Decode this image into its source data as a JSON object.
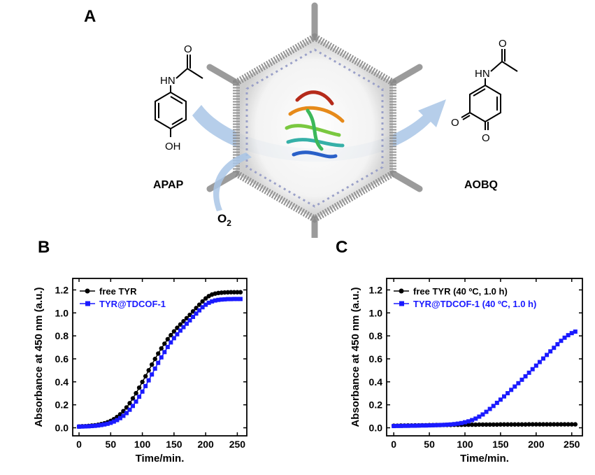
{
  "panels": {
    "a": {
      "letter": "A"
    },
    "b": {
      "letter": "B"
    },
    "c": {
      "letter": "C"
    }
  },
  "scheme": {
    "reactant_label": "APAP",
    "product_label": "AOBQ",
    "oxygen_label": "O",
    "oxygen_subscript": "2",
    "reactant_atoms": {
      "nh": "HN",
      "o_carbonyl": "O",
      "oh": "OH"
    },
    "product_atoms": {
      "nh": "HN",
      "o_carbonyl": "O",
      "o1": "O",
      "o2": "O"
    }
  },
  "colors": {
    "free": "#000000",
    "immobilized": "#1a1aff",
    "arrow": "#a9c6e6"
  },
  "chart_data": [
    {
      "type": "scatter",
      "panel": "B",
      "title": "",
      "xlabel": "Time/min.",
      "ylabel": "Absorbance at 450 nm (a.u.)",
      "xlim": [
        -10,
        265
      ],
      "ylim": [
        -0.07,
        1.3
      ],
      "xticks": [
        "0",
        "50",
        "100",
        "150",
        "200",
        "250"
      ],
      "yticks": [
        "0.0",
        "0.2",
        "0.4",
        "0.6",
        "0.8",
        "1.0",
        "1.2"
      ],
      "grid": false,
      "legend_position": "top-left",
      "series": [
        {
          "name": "free TYR",
          "marker": "circle",
          "x": [
            0,
            5,
            10,
            15,
            20,
            25,
            30,
            35,
            40,
            45,
            50,
            55,
            60,
            65,
            70,
            75,
            80,
            85,
            90,
            95,
            100,
            105,
            110,
            115,
            120,
            125,
            130,
            135,
            140,
            145,
            150,
            155,
            160,
            165,
            170,
            175,
            180,
            185,
            190,
            195,
            200,
            205,
            210,
            215,
            220,
            225,
            230,
            235,
            240,
            245,
            250,
            255
          ],
          "y": [
            0.011,
            0.013,
            0.014,
            0.016,
            0.019,
            0.022,
            0.026,
            0.032,
            0.039,
            0.048,
            0.06,
            0.075,
            0.094,
            0.117,
            0.145,
            0.177,
            0.214,
            0.256,
            0.301,
            0.349,
            0.399,
            0.449,
            0.5,
            0.55,
            0.599,
            0.646,
            0.691,
            0.732,
            0.771,
            0.806,
            0.839,
            0.87,
            0.899,
            0.927,
            0.954,
            0.983,
            1.013,
            1.042,
            1.071,
            1.1,
            1.126,
            1.146,
            1.16,
            1.168,
            1.173,
            1.176,
            1.178,
            1.179,
            1.18,
            1.18,
            1.18,
            1.18
          ]
        },
        {
          "name": "TYR@TDCOF-1",
          "marker": "square",
          "x": [
            0,
            5,
            10,
            15,
            20,
            25,
            30,
            35,
            40,
            45,
            50,
            55,
            60,
            65,
            70,
            75,
            80,
            85,
            90,
            95,
            100,
            105,
            110,
            115,
            120,
            125,
            130,
            135,
            140,
            145,
            150,
            155,
            160,
            165,
            170,
            175,
            180,
            185,
            190,
            195,
            200,
            205,
            210,
            215,
            220,
            225,
            230,
            235,
            240,
            245,
            250,
            255
          ],
          "y": [
            0.01,
            0.011,
            0.012,
            0.013,
            0.015,
            0.017,
            0.02,
            0.024,
            0.029,
            0.035,
            0.043,
            0.054,
            0.067,
            0.084,
            0.104,
            0.128,
            0.157,
            0.19,
            0.228,
            0.27,
            0.315,
            0.363,
            0.413,
            0.464,
            0.515,
            0.565,
            0.613,
            0.659,
            0.703,
            0.743,
            0.78,
            0.814,
            0.846,
            0.876,
            0.906,
            0.935,
            0.965,
            0.994,
            1.022,
            1.049,
            1.071,
            1.088,
            1.1,
            1.108,
            1.113,
            1.116,
            1.118,
            1.12,
            1.12,
            1.121,
            1.121,
            1.121
          ]
        }
      ]
    },
    {
      "type": "scatter",
      "panel": "C",
      "title": "",
      "xlabel": "Time/min.",
      "ylabel": "Absorbance at 450 nm (a.u.)",
      "xlim": [
        -10,
        265
      ],
      "ylim": [
        -0.07,
        1.3
      ],
      "xticks": [
        "0",
        "50",
        "100",
        "150",
        "200",
        "250"
      ],
      "yticks": [
        "0.0",
        "0.2",
        "0.4",
        "0.6",
        "0.8",
        "1.0",
        "1.2"
      ],
      "grid": false,
      "legend_position": "top-left",
      "series": [
        {
          "name": "free TYR (40 ºC, 1.0 h)",
          "marker": "circle",
          "x": [
            0,
            5,
            10,
            15,
            20,
            25,
            30,
            35,
            40,
            45,
            50,
            55,
            60,
            65,
            70,
            75,
            80,
            85,
            90,
            95,
            100,
            105,
            110,
            115,
            120,
            125,
            130,
            135,
            140,
            145,
            150,
            155,
            160,
            165,
            170,
            175,
            180,
            185,
            190,
            195,
            200,
            205,
            210,
            215,
            220,
            225,
            230,
            235,
            240,
            245,
            250,
            255
          ],
          "y": [
            0.018,
            0.018,
            0.019,
            0.019,
            0.02,
            0.02,
            0.021,
            0.021,
            0.022,
            0.022,
            0.023,
            0.023,
            0.024,
            0.024,
            0.025,
            0.025,
            0.025,
            0.026,
            0.026,
            0.026,
            0.027,
            0.027,
            0.027,
            0.027,
            0.028,
            0.028,
            0.028,
            0.028,
            0.028,
            0.028,
            0.029,
            0.029,
            0.029,
            0.029,
            0.029,
            0.029,
            0.029,
            0.029,
            0.03,
            0.03,
            0.03,
            0.03,
            0.03,
            0.03,
            0.03,
            0.03,
            0.03,
            0.03,
            0.03,
            0.03,
            0.03,
            0.03
          ]
        },
        {
          "name": "TYR@TDCOF-1 (40 ºC, 1.0 h)",
          "marker": "square",
          "x": [
            0,
            5,
            10,
            15,
            20,
            25,
            30,
            35,
            40,
            45,
            50,
            55,
            60,
            65,
            70,
            75,
            80,
            85,
            90,
            95,
            100,
            105,
            110,
            115,
            120,
            125,
            130,
            135,
            140,
            145,
            150,
            155,
            160,
            165,
            170,
            175,
            180,
            185,
            190,
            195,
            200,
            205,
            210,
            215,
            220,
            225,
            230,
            235,
            240,
            245,
            250,
            255
          ],
          "y": [
            0.015,
            0.016,
            0.016,
            0.017,
            0.017,
            0.018,
            0.018,
            0.019,
            0.02,
            0.02,
            0.021,
            0.022,
            0.023,
            0.024,
            0.025,
            0.027,
            0.029,
            0.032,
            0.036,
            0.041,
            0.048,
            0.056,
            0.067,
            0.08,
            0.097,
            0.116,
            0.139,
            0.164,
            0.19,
            0.217,
            0.245,
            0.273,
            0.301,
            0.33,
            0.359,
            0.388,
            0.418,
            0.448,
            0.479,
            0.51,
            0.541,
            0.572,
            0.603,
            0.634,
            0.665,
            0.696,
            0.727,
            0.757,
            0.784,
            0.806,
            0.824,
            0.837
          ]
        }
      ]
    }
  ]
}
